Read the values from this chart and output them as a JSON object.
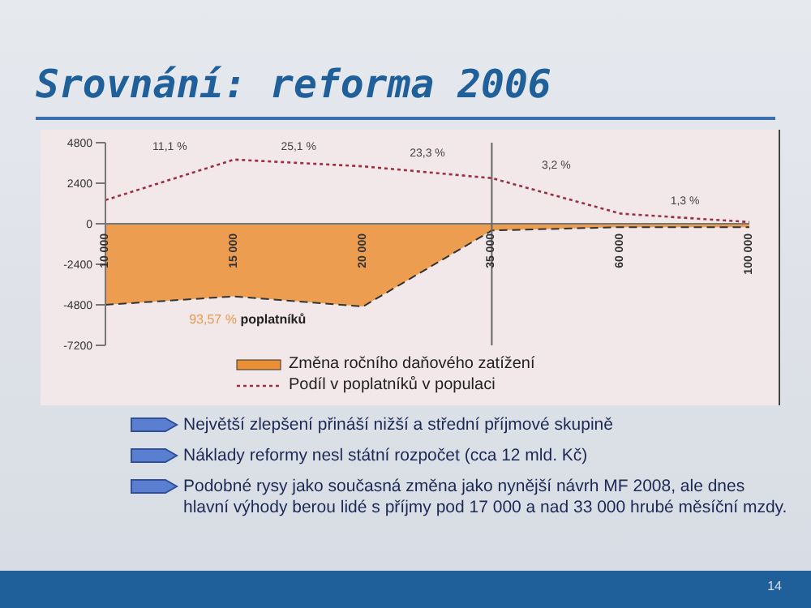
{
  "chart_data": {
    "type": "area",
    "title": "Srovnání: reforma 2006",
    "categories": [
      "10 000",
      "15 000",
      "20 000",
      "35 000",
      "60 000",
      "100 000"
    ],
    "series": [
      {
        "name": "Změna ročního daňového zatížení",
        "color": "#eb8f35",
        "values": [
          -4800,
          -4300,
          -4900,
          -400,
          -200,
          -200
        ]
      },
      {
        "name": "Podíl v poplatníků v populaci",
        "type": "line",
        "color": "#9b3040",
        "line_style": "dotted",
        "values": [
          1400,
          3800,
          3400,
          2700,
          600,
          100
        ]
      }
    ],
    "ylim": [
      -7200,
      4800
    ],
    "yticks": [
      4800,
      2400,
      0,
      -2400,
      -4800,
      -7200
    ],
    "ref_lines": [
      {
        "axis": "x",
        "value": "35 000",
        "color": "#666666"
      }
    ],
    "legend": "bottom",
    "grid": false,
    "annotations": [
      "11,1 %",
      "25,1 %",
      "23,3 %",
      "3,2 %",
      "1,3 %",
      "93,57 % poplatníků",
      "Největší zlepšení přináší nižší a střední příjmové skupině",
      "Náklady reformy nesl státní rozpočet (cca 12 mld. Kč)",
      "Podobné rysy jako současná změna jako nynější návrh MF 2008, ale dnes hlavní výhody berou lidé s příjmy pod 17 000 a nad 33 000 hrubé měsíční mzdy.",
      "14"
    ]
  }
}
